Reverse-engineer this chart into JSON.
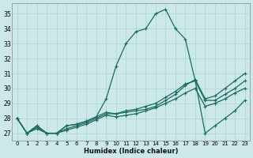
{
  "xlabel": "Humidex (Indice chaleur)",
  "bg_color": "#cce8e8",
  "grid_color": "#aad4d4",
  "line_color": "#1a6b60",
  "xlim": [
    -0.5,
    23.5
  ],
  "ylim": [
    26.5,
    35.7
  ],
  "yticks": [
    27,
    28,
    29,
    30,
    31,
    32,
    33,
    34,
    35
  ],
  "xticks": [
    0,
    1,
    2,
    3,
    4,
    5,
    6,
    7,
    8,
    9,
    10,
    11,
    12,
    13,
    14,
    15,
    16,
    17,
    18,
    19,
    20,
    21,
    22,
    23
  ],
  "curves": [
    [
      28.0,
      27.0,
      27.5,
      27.0,
      27.0,
      27.5,
      27.6,
      27.8,
      28.1,
      29.3,
      31.5,
      33.0,
      33.8,
      34.0,
      35.0,
      35.3,
      34.0,
      33.3,
      30.5,
      27.0,
      27.5,
      28.0,
      28.5,
      29.2
    ],
    [
      28.0,
      27.0,
      27.5,
      27.0,
      27.0,
      27.5,
      27.6,
      27.8,
      28.1,
      28.4,
      28.3,
      28.4,
      28.5,
      28.6,
      28.8,
      29.2,
      29.6,
      30.2,
      30.6,
      29.3,
      29.5,
      30.0,
      30.5,
      31.0
    ],
    [
      28.0,
      27.0,
      27.4,
      27.0,
      27.0,
      27.3,
      27.5,
      27.7,
      28.0,
      28.3,
      28.3,
      28.5,
      28.6,
      28.8,
      29.0,
      29.4,
      29.8,
      30.3,
      30.5,
      29.2,
      29.2,
      29.6,
      30.0,
      30.5
    ],
    [
      28.0,
      27.0,
      27.3,
      27.0,
      27.0,
      27.2,
      27.4,
      27.6,
      27.9,
      28.2,
      28.1,
      28.2,
      28.3,
      28.5,
      28.7,
      29.0,
      29.3,
      29.7,
      30.0,
      28.8,
      29.0,
      29.3,
      29.7,
      30.0
    ]
  ]
}
